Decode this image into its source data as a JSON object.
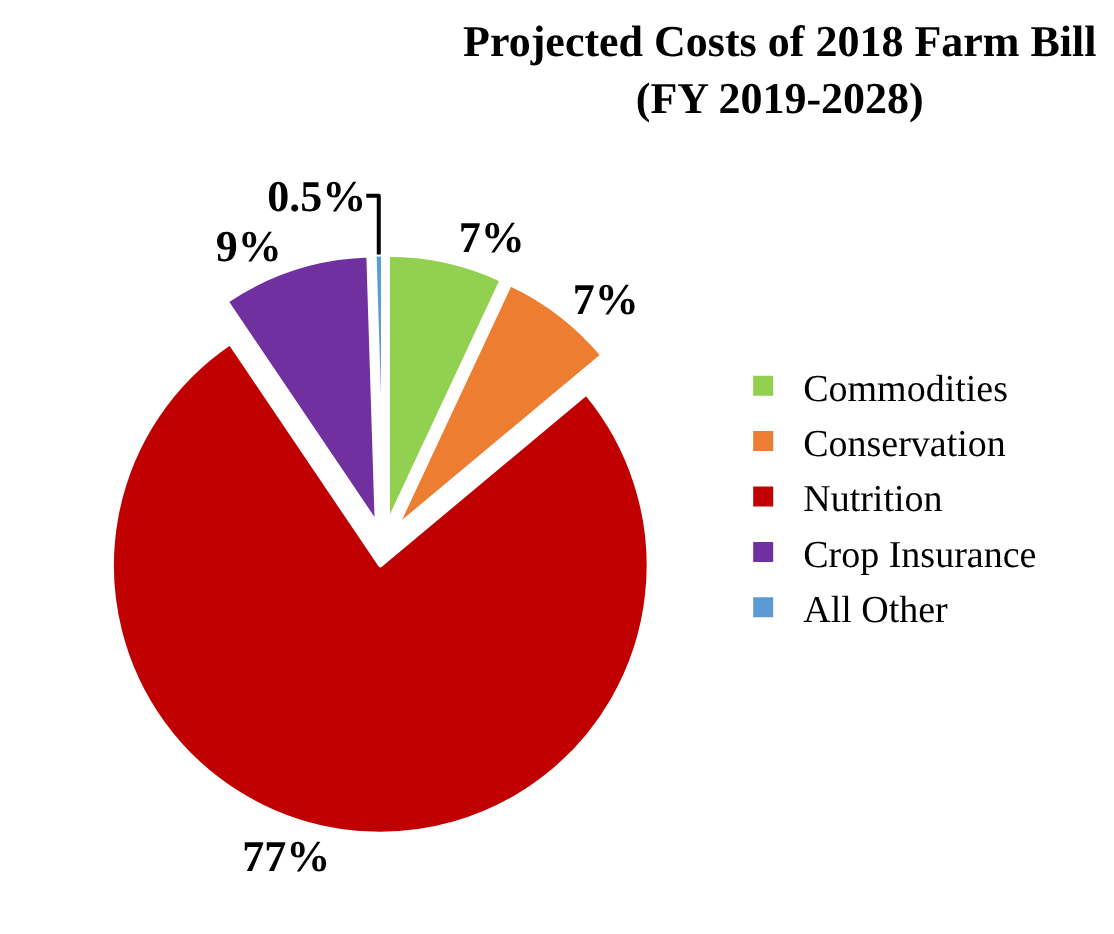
{
  "chart_data": {
    "type": "pie",
    "title": "Projected Costs of 2018 Farm Bill\n(FY 2019-2028)",
    "categories": [
      "Commodities",
      "Conservation",
      "Nutrition",
      "Crop Insurance",
      "All Other"
    ],
    "values": [
      7,
      7,
      77,
      9,
      0.5
    ],
    "colors": [
      "#92d050",
      "#ed7d31",
      "#c00000",
      "#7030a0",
      "#5b9bd5"
    ],
    "value_labels": [
      "7%",
      "7%",
      "77%",
      "9%",
      "0.5%"
    ],
    "legend": "right"
  }
}
